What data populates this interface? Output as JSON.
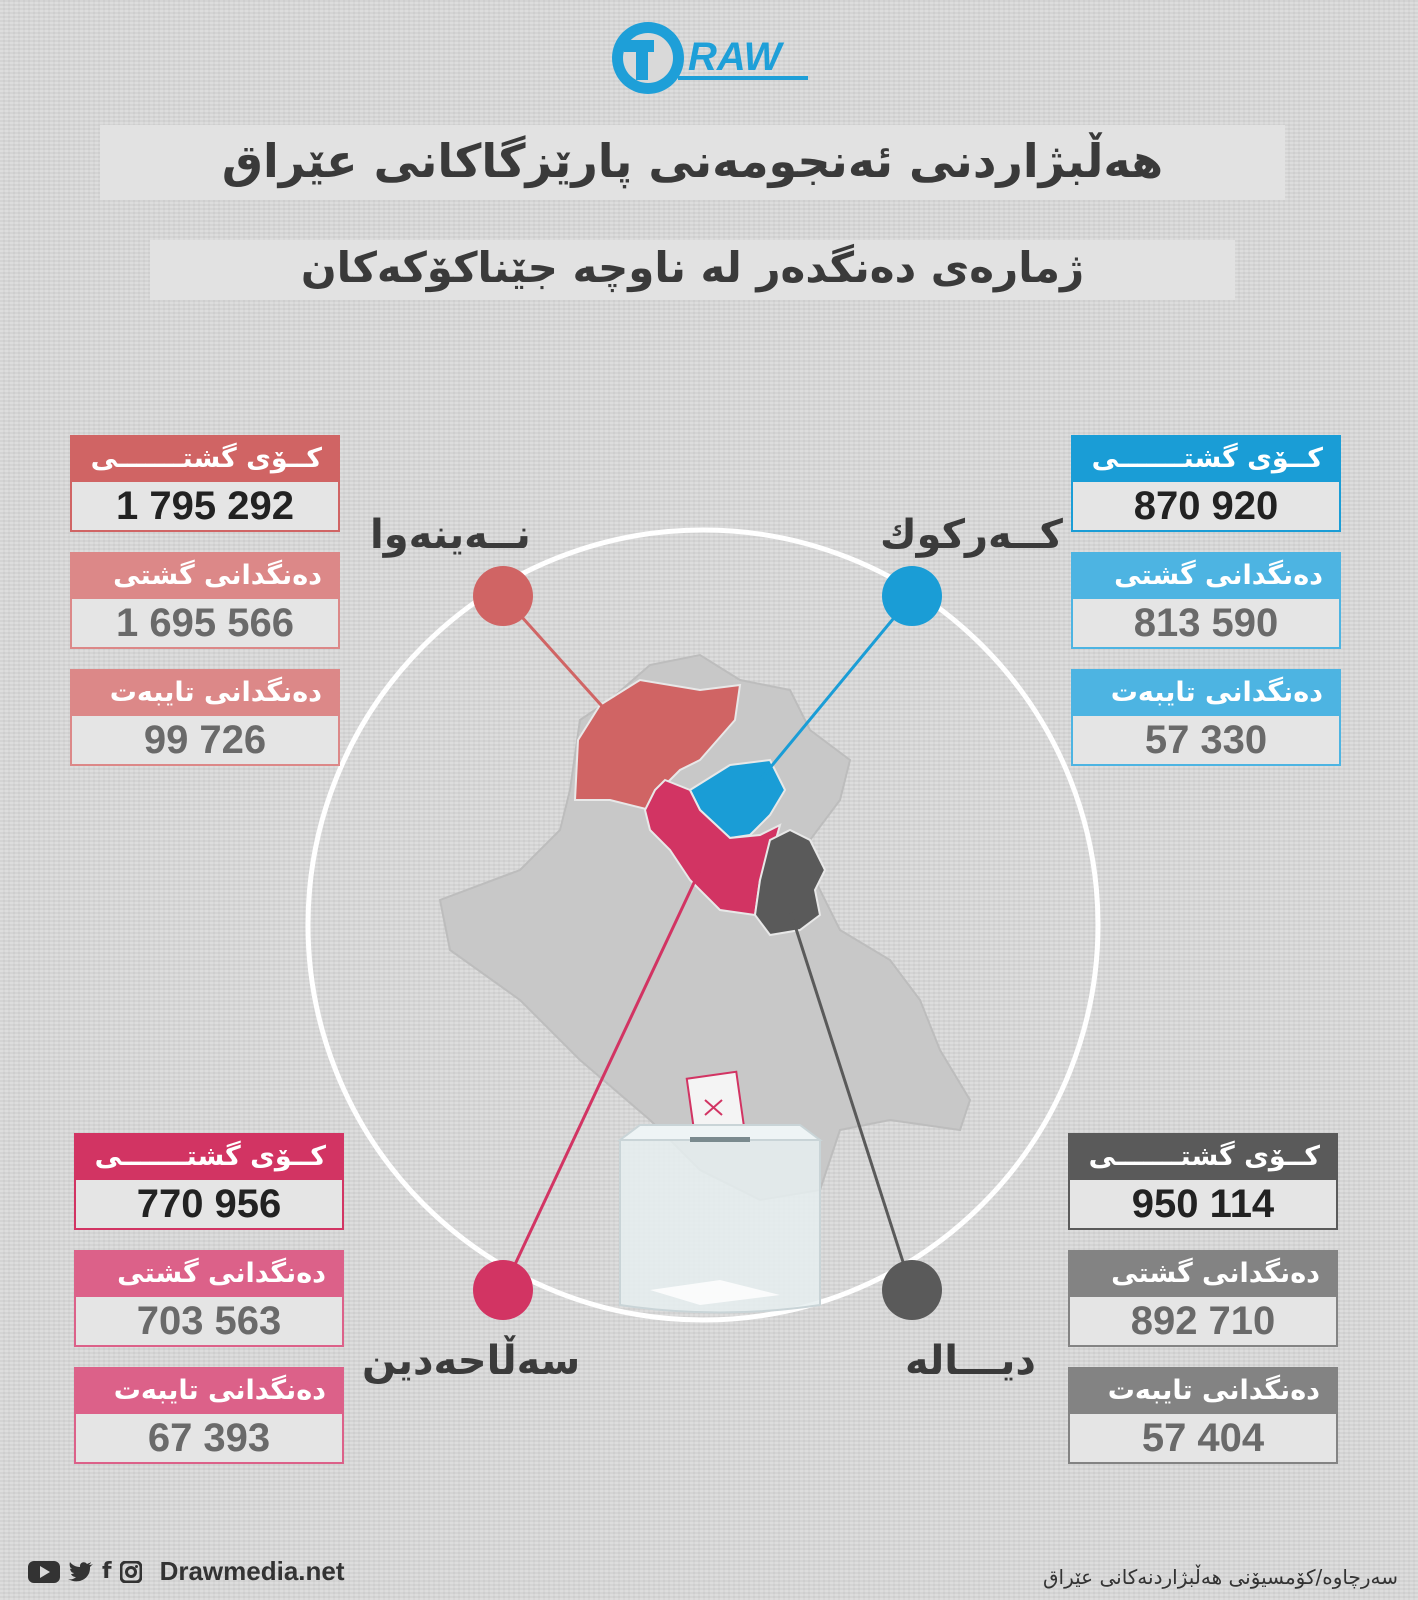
{
  "logo": {
    "text": "DRAW",
    "color": "#1e9fd8"
  },
  "title": "هەڵبژاردنی ئەنجومەنی پارێزگاکانی عێراق",
  "subtitle": "ژمارەی دەنگدەر لە ناوچە جێناکۆکەکان",
  "labels": {
    "total": "کــۆی گشتـــــــی",
    "general": "دەنگدانی گشتی",
    "special": "دەنگدانی تایبەت"
  },
  "regions": {
    "nineveh": {
      "name": "نــەینەوا",
      "color": "#d06464",
      "total": "1 795 292",
      "general": "1 695 566",
      "special": "99 726"
    },
    "kirkuk": {
      "name": "کــەرکوك",
      "color": "#1a9dd6",
      "total": "870 920",
      "general": "813 590",
      "special": "57 330"
    },
    "salahaddin": {
      "name": "سەڵاحەدین",
      "color": "#d23463",
      "total": "770 956",
      "general": "703 563",
      "special": "67 393"
    },
    "diyala": {
      "name": "دیـــاله",
      "color": "#5a5a5a",
      "total": "950 114",
      "general": "892 710",
      "special": "57 404"
    }
  },
  "footer": {
    "site": "Drawmedia.net",
    "source": "سەرچاوە/کۆمسیۆنی هەڵبژاردنەکانی عێراق",
    "icons": [
      "youtube-icon",
      "twitter-icon",
      "facebook-icon",
      "instagram-icon"
    ]
  }
}
